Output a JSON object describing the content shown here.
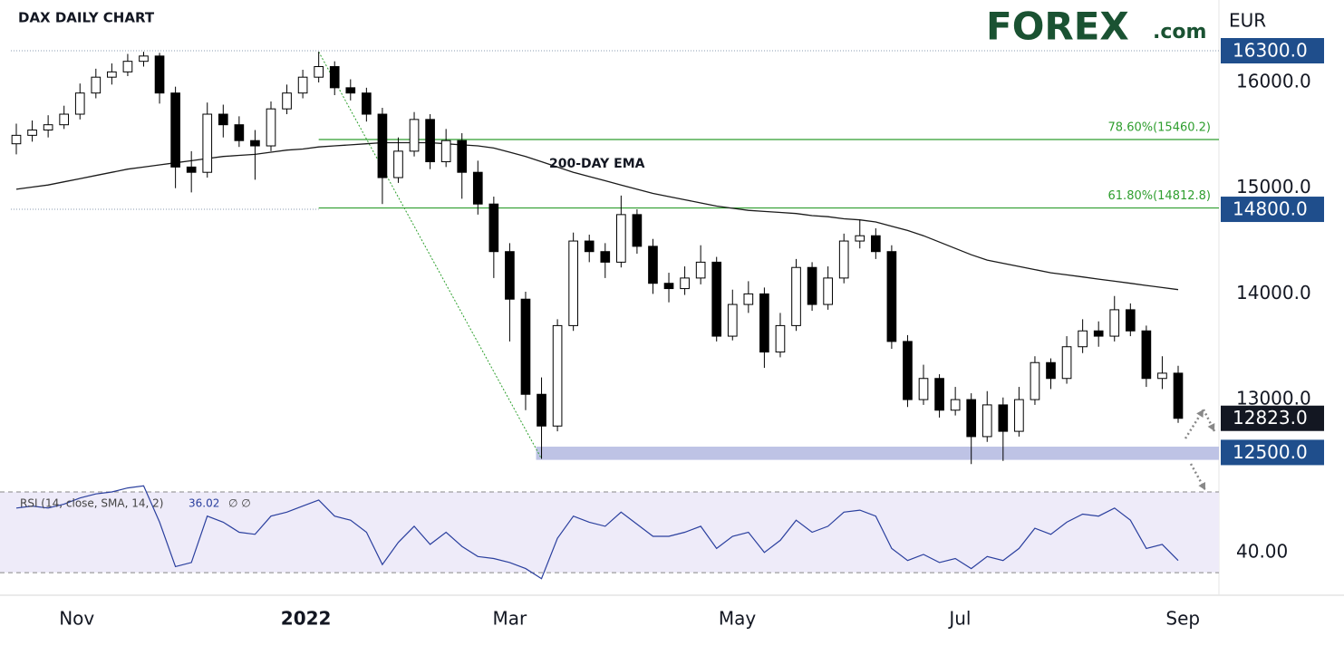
{
  "chart_data": {
    "type": "candlestick",
    "title": "DAX DAILY CHART",
    "logo": {
      "brand": "FOREX",
      "suffix": ".com"
    },
    "currency": "EUR",
    "up_color": "#ffffff",
    "down_color": "#000000",
    "ylim": [
      12238,
      16780
    ],
    "yticks": [
      {
        "value": 16000,
        "label": "16000.0"
      },
      {
        "value": 15000,
        "label": "15000.0"
      },
      {
        "value": 14000,
        "label": "14000.0"
      },
      {
        "value": 13000,
        "label": "13000.0"
      }
    ],
    "price_labels": [
      {
        "value": 16300,
        "label": "16300.0",
        "color": "#1f4e8c"
      },
      {
        "value": 14800,
        "label": "14800.0",
        "color": "#1f4e8c"
      },
      {
        "value": 12823,
        "label": "12823.0",
        "color": "#131722"
      },
      {
        "value": 12500,
        "label": "12500.0",
        "color": "#1f4e8c"
      }
    ],
    "xticks": [
      {
        "value": 3.8,
        "label": "Nov"
      },
      {
        "value": 18.2,
        "label": "2022"
      },
      {
        "value": 31,
        "label": "Mar"
      },
      {
        "value": 45.3,
        "label": "May"
      },
      {
        "value": 59.3,
        "label": "Jul"
      },
      {
        "value": 73.3,
        "label": "Sep"
      }
    ],
    "open": [
      15420,
      15500,
      15550,
      15600,
      15700,
      15900,
      16050,
      16100,
      16200,
      16250,
      15900,
      15200,
      15150,
      15700,
      15600,
      15450,
      15400,
      15750,
      15900,
      16050,
      16150,
      15950,
      15900,
      15700,
      15100,
      15350,
      15650,
      15250,
      15450,
      15150,
      14850,
      14400,
      13950,
      13050,
      12750,
      13700,
      14500,
      14400,
      14300,
      14750,
      14450,
      14100,
      14050,
      14150,
      14300,
      13600,
      13900,
      14000,
      13450,
      13700,
      14250,
      13900,
      14150,
      14500,
      14550,
      14400,
      13550,
      13000,
      13200,
      12900,
      13000,
      12650,
      12950,
      12700,
      13000,
      13350,
      13200,
      13500,
      13650,
      13600,
      13850,
      13650,
      13200,
      13250
    ],
    "high": [
      15610,
      15640,
      15690,
      15780,
      15990,
      16130,
      16180,
      16270,
      16290,
      16280,
      15960,
      15350,
      15810,
      15790,
      15680,
      15550,
      15820,
      15980,
      16120,
      16290,
      16200,
      16030,
      15950,
      15760,
      15480,
      15720,
      15700,
      15560,
      15520,
      15260,
      14920,
      14480,
      14020,
      13210,
      13760,
      14580,
      14560,
      14480,
      14930,
      14800,
      14520,
      14200,
      14260,
      14460,
      14350,
      14040,
      14120,
      14060,
      13820,
      14330,
      14300,
      14260,
      14570,
      14700,
      14620,
      14460,
      13610,
      13330,
      13240,
      13120,
      13060,
      13080,
      13020,
      13120,
      13410,
      13390,
      13600,
      13760,
      13740,
      13980,
      13910,
      13700,
      13410,
      13320
    ],
    "low": [
      15320,
      15440,
      15480,
      15560,
      15650,
      15850,
      15980,
      16060,
      16150,
      15800,
      15000,
      14960,
      15100,
      15480,
      15390,
      15080,
      15350,
      15700,
      15850,
      16000,
      15880,
      15830,
      15630,
      14850,
      15050,
      15300,
      15180,
      15200,
      14900,
      14750,
      14150,
      13550,
      12900,
      12440,
      12700,
      13650,
      14300,
      14150,
      14250,
      14380,
      14000,
      13920,
      13990,
      14090,
      13550,
      13560,
      13820,
      13300,
      13400,
      13650,
      13840,
      13850,
      14100,
      14430,
      14330,
      13480,
      12930,
      12950,
      12830,
      12850,
      12390,
      12600,
      12420,
      12650,
      12950,
      13100,
      13150,
      13440,
      13500,
      13550,
      13600,
      13120,
      13100,
      12780
    ],
    "close": [
      15500,
      15550,
      15600,
      15700,
      15900,
      16050,
      16100,
      16200,
      16250,
      15900,
      15200,
      15150,
      15700,
      15600,
      15450,
      15400,
      15750,
      15900,
      16050,
      16150,
      15950,
      15900,
      15700,
      15100,
      15350,
      15650,
      15250,
      15450,
      15150,
      14850,
      14400,
      13950,
      13050,
      12750,
      13700,
      14500,
      14400,
      14300,
      14750,
      14450,
      14100,
      14050,
      14150,
      14300,
      13600,
      13900,
      14000,
      13450,
      13700,
      14250,
      13900,
      14150,
      14500,
      14550,
      14400,
      13550,
      13000,
      13200,
      12900,
      13000,
      12650,
      12950,
      12700,
      13000,
      13350,
      13200,
      13500,
      13650,
      13600,
      13850,
      13650,
      13200,
      13250,
      12823
    ],
    "ema": {
      "label": "200-DAY EMA",
      "color": "#1a1a1a",
      "values": [
        14990,
        15010,
        15030,
        15060,
        15090,
        15120,
        15150,
        15180,
        15200,
        15220,
        15240,
        15260,
        15280,
        15300,
        15310,
        15320,
        15340,
        15360,
        15370,
        15390,
        15400,
        15410,
        15420,
        15430,
        15430,
        15430,
        15430,
        15420,
        15410,
        15400,
        15380,
        15340,
        15300,
        15250,
        15200,
        15150,
        15110,
        15070,
        15030,
        14990,
        14950,
        14920,
        14890,
        14860,
        14830,
        14810,
        14790,
        14780,
        14770,
        14760,
        14740,
        14730,
        14710,
        14700,
        14680,
        14640,
        14600,
        14550,
        14490,
        14430,
        14370,
        14320,
        14290,
        14260,
        14230,
        14200,
        14180,
        14160,
        14140,
        14120,
        14100,
        14080,
        14060,
        14040
      ]
    },
    "fib_levels": [
      {
        "label": "78.60%(15460.2)",
        "value": 15460.2,
        "color": "#2e9e2e"
      },
      {
        "label": "61.80%(14812.8)",
        "value": 14812.8,
        "color": "#2e9e2e"
      }
    ],
    "support_zone": {
      "range": [
        12430,
        12555
      ],
      "color": "#b3b8e0"
    },
    "rsi": {
      "label": "RSI (14, close, SMA, 14, 2)",
      "last_label": "36.02",
      "extra_label": "∅ ∅",
      "color": "#2a3f9e",
      "ylim": [
        19.7,
        73.6
      ],
      "levels": [
        70,
        30
      ],
      "yticks": [
        {
          "value": 40,
          "label": "40.00"
        }
      ],
      "values": [
        62,
        63,
        62,
        64,
        67,
        69,
        70,
        72,
        73,
        55,
        33,
        35,
        58,
        55,
        50,
        49,
        58,
        60,
        63,
        66,
        58,
        56,
        50,
        34,
        45,
        53,
        44,
        50,
        43,
        38,
        37,
        35,
        32,
        27,
        47,
        58,
        55,
        53,
        60,
        54,
        48,
        48,
        50,
        53,
        42,
        48,
        50,
        40,
        46,
        56,
        50,
        53,
        60,
        61,
        58,
        42,
        36,
        39,
        35,
        37,
        32,
        38,
        36,
        42,
        52,
        49,
        55,
        59,
        58,
        62,
        56,
        42,
        44,
        36.02
      ]
    }
  }
}
